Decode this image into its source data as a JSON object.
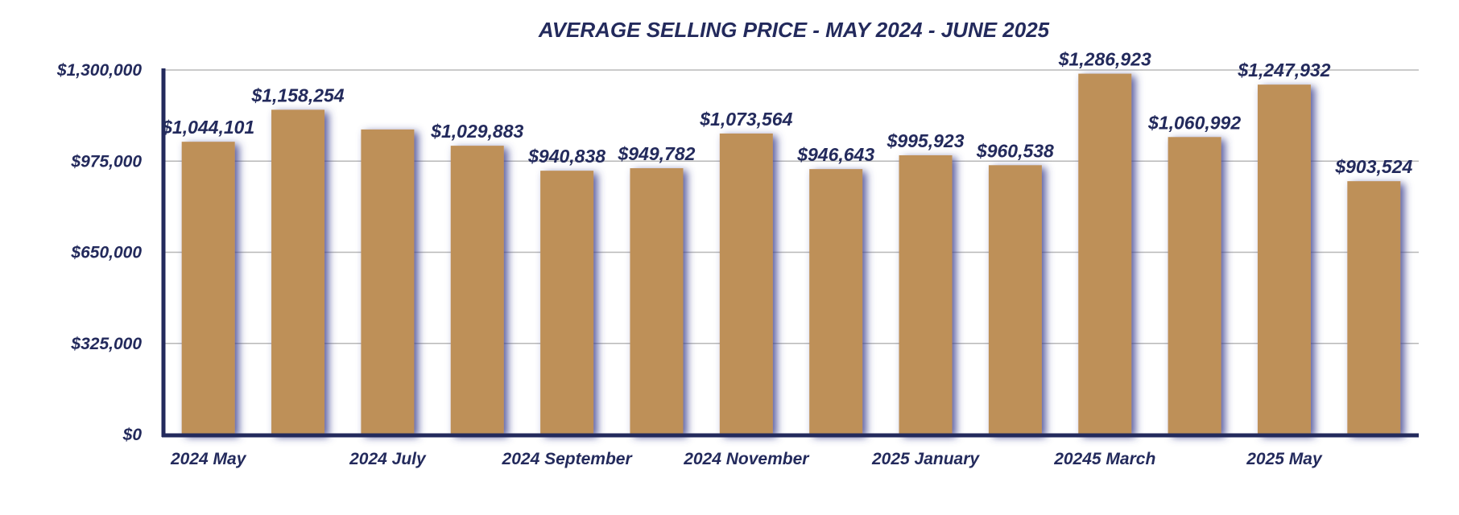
{
  "chart_data": {
    "type": "bar",
    "title": "AVERAGE SELLING PRICE - MAY 2024 - JUNE 2025",
    "xlabel": "",
    "ylabel": "",
    "ylim": [
      0,
      1300000
    ],
    "yticks": [
      0,
      325000,
      650000,
      975000,
      1300000
    ],
    "ytick_labels": [
      "$0",
      "$325,000",
      "$650,000",
      "$975,000",
      "$1,300,000"
    ],
    "grid": true,
    "categories": [
      "2024 May",
      "",
      "2024 July",
      "",
      "2024 September",
      "",
      "2024 November",
      "",
      "2025 January",
      "",
      "20245 March",
      "",
      "2025 May",
      ""
    ],
    "values": [
      1044101,
      1158254,
      1088000,
      1029883,
      940838,
      949782,
      1073564,
      946643,
      995923,
      960538,
      1286923,
      1060992,
      1247932,
      903524
    ],
    "data_labels": [
      "$1,044,101",
      "$1,158,254",
      "",
      "$1,029,883",
      "$940,838",
      "$949,782",
      "$1,073,564",
      "$946,643",
      "$995,923",
      "$960,538",
      "$1,286,923",
      "$1,060,992",
      "$1,247,932",
      "$903,524"
    ],
    "colors": {
      "bar": "#be9059",
      "bar_shadow": "#3a3f8f",
      "text": "#232a5c",
      "axis": "#232a5c",
      "grid": "#b8b8b8"
    }
  }
}
